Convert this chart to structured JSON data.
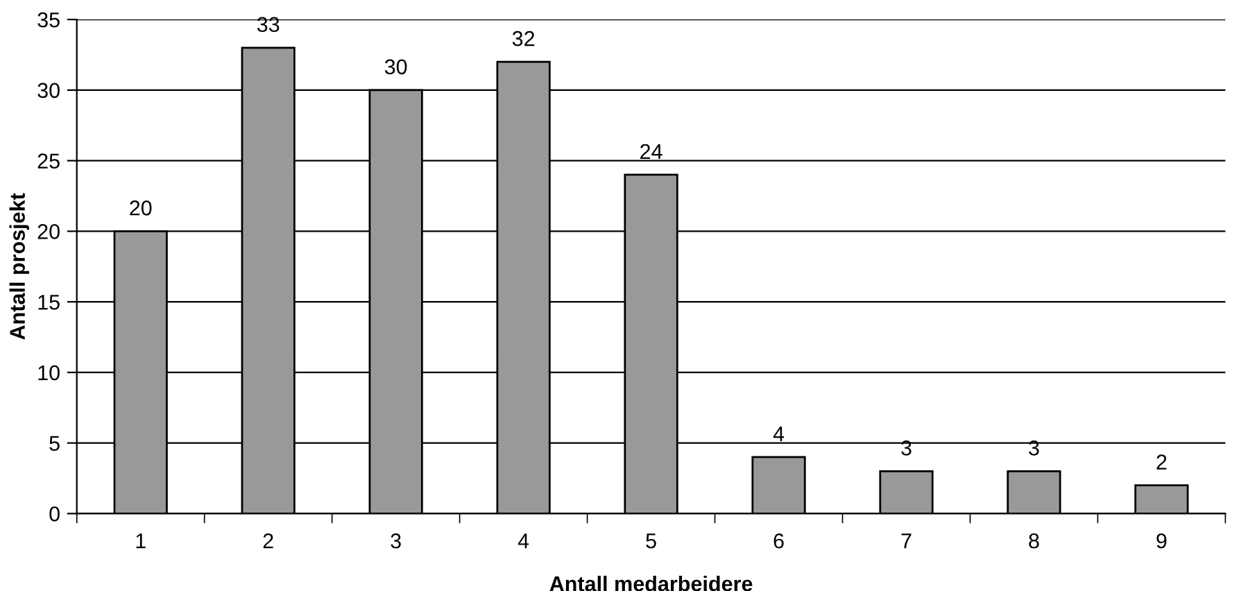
{
  "chart_data": {
    "type": "bar",
    "xlabel": "Antall medarbeidere",
    "ylabel": "Antall prosjekt",
    "categories": [
      "1",
      "2",
      "3",
      "4",
      "5",
      "6",
      "7",
      "8",
      "9"
    ],
    "values": [
      20,
      33,
      30,
      32,
      24,
      4,
      3,
      3,
      2
    ],
    "color": "#999999",
    "ylim": [
      0,
      35
    ],
    "yticks": [
      0,
      5,
      10,
      15,
      20,
      25,
      30,
      35
    ],
    "grid": "y",
    "data_labels": true,
    "legend": false
  }
}
